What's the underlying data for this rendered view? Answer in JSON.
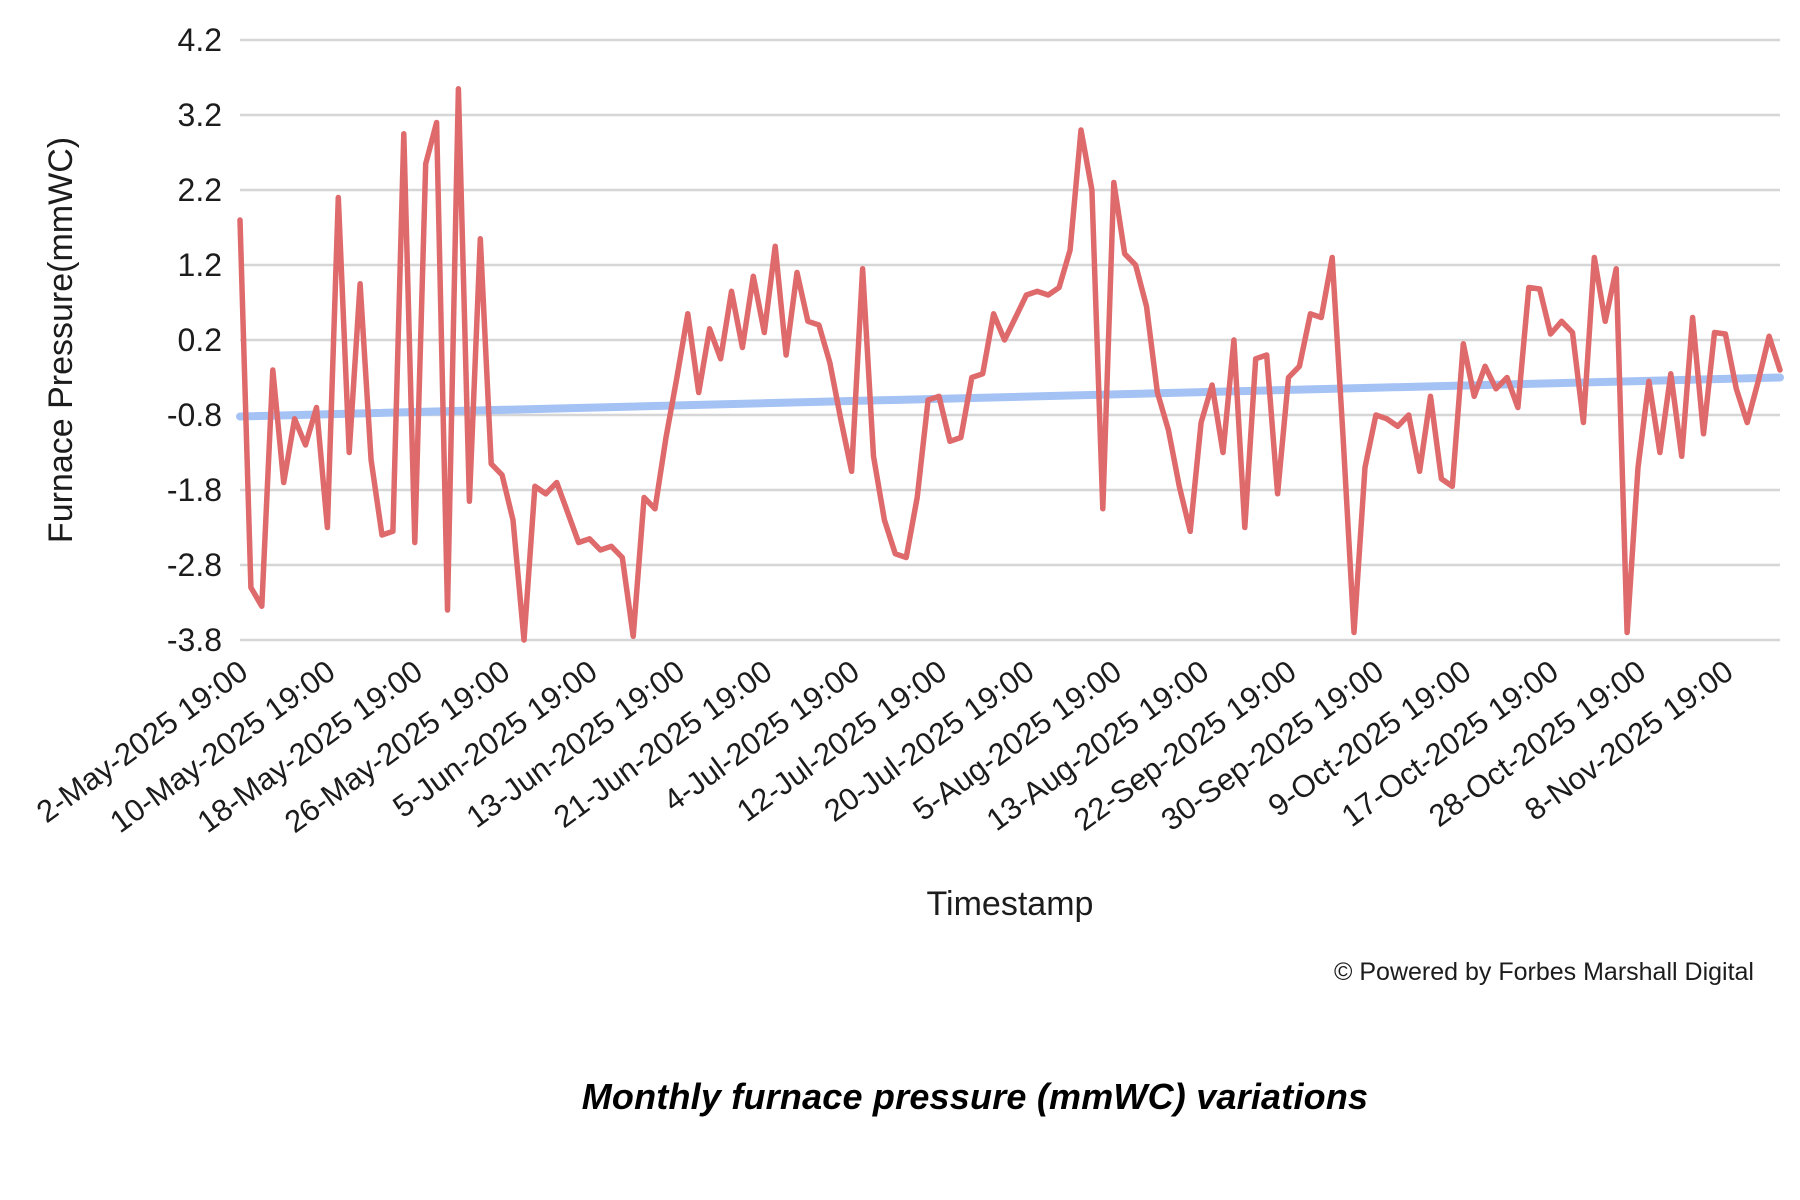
{
  "footer": {
    "text": "© Powered by Forbes Marshall Digital"
  },
  "caption": {
    "text": "Monthly furnace pressure (mmWC) variations"
  },
  "chart_data": {
    "type": "line",
    "title": "Monthly furnace pressure (mmWC) variations",
    "xlabel": "Timestamp",
    "ylabel": "Furnace Pressure(mmWC)",
    "ylim": [
      -3.8,
      4.2
    ],
    "y_ticks": [
      4.2,
      3.2,
      2.2,
      1.2,
      0.2,
      -0.8,
      -1.8,
      -2.8,
      -3.8
    ],
    "grid": true,
    "legend_position": "none",
    "x_tick_labels": [
      "2-May-2025 19:00",
      "10-May-2025 19:00",
      "18-May-2025 19:00",
      "26-May-2025 19:00",
      "5-Jun-2025 19:00",
      "13-Jun-2025 19:00",
      "21-Jun-2025 19:00",
      "4-Jul-2025 19:00",
      "12-Jul-2025 19:00",
      "20-Jul-2025 19:00",
      "5-Aug-2025 19:00",
      "13-Aug-2025 19:00",
      "22-Sep-2025 19:00",
      "30-Sep-2025 19:00",
      "9-Oct-2025 19:00",
      "17-Oct-2025 19:00",
      "28-Oct-2025 19:00",
      "8-Nov-2025 19:00"
    ],
    "label_every": 8,
    "series": [
      {
        "name": "Furnace Pressure (mmWC)",
        "color": "#df6a6c",
        "values": [
          1.8,
          -3.1,
          -3.35,
          -0.2,
          -1.7,
          -0.85,
          -1.2,
          -0.7,
          -2.3,
          2.1,
          -1.3,
          0.95,
          -1.4,
          -2.4,
          -2.35,
          2.95,
          -2.5,
          2.55,
          3.1,
          -3.4,
          3.55,
          -1.95,
          1.55,
          -1.45,
          -1.6,
          -2.2,
          -3.8,
          -1.75,
          -1.85,
          -1.7,
          -2.1,
          -2.5,
          -2.45,
          -2.6,
          -2.55,
          -2.7,
          -3.75,
          -1.9,
          -2.05,
          -1.1,
          -0.3,
          0.55,
          -0.5,
          0.35,
          -0.05,
          0.85,
          0.1,
          1.05,
          0.3,
          1.45,
          0.0,
          1.1,
          0.45,
          0.4,
          -0.1,
          -0.85,
          -1.55,
          1.15,
          -1.35,
          -2.2,
          -2.65,
          -2.7,
          -1.9,
          -0.6,
          -0.55,
          -1.15,
          -1.1,
          -0.3,
          -0.25,
          0.55,
          0.2,
          0.5,
          0.8,
          0.85,
          0.8,
          0.9,
          1.4,
          3.0,
          2.2,
          -2.05,
          2.3,
          1.35,
          1.2,
          0.65,
          -0.5,
          -1.0,
          -1.75,
          -2.35,
          -0.9,
          -0.4,
          -1.3,
          0.2,
          -2.3,
          -0.05,
          0.0,
          -1.85,
          -0.3,
          -0.15,
          0.55,
          0.5,
          1.3,
          -1.1,
          -3.7,
          -1.5,
          -0.8,
          -0.85,
          -0.95,
          -0.8,
          -1.55,
          -0.55,
          -1.65,
          -1.75,
          0.15,
          -0.55,
          -0.15,
          -0.45,
          -0.3,
          -0.7,
          0.9,
          0.88,
          0.28,
          0.45,
          0.3,
          -0.9,
          1.3,
          0.45,
          1.15,
          -3.7,
          -1.5,
          -0.35,
          -1.3,
          -0.25,
          -1.35,
          0.5,
          -1.05,
          0.3,
          0.28,
          -0.45,
          -0.9,
          -0.35,
          0.25,
          -0.2
        ]
      }
    ],
    "trendline": {
      "color": "#a4c2f4",
      "start_value": -0.82,
      "end_value": -0.3
    },
    "grid_color": "#d6d6d6",
    "axis_text_color": "#1c1c1c"
  }
}
